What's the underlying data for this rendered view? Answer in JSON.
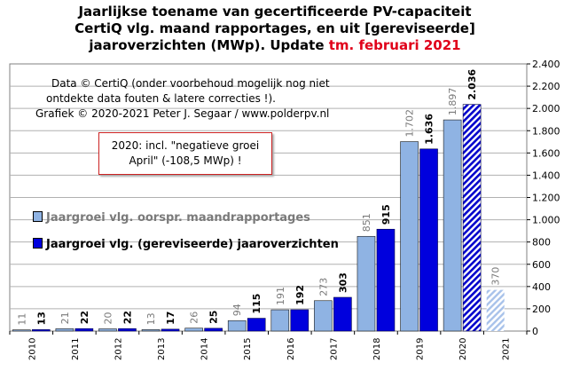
{
  "title": {
    "line1": "Jaarlijkse toename van gecertificeerde PV-capaciteit",
    "line2": "CertiQ vlg. maand rapportages, en uit [gereviseerde]",
    "line3_main": "jaaroverzichten (MWp). Update ",
    "line3_red": "tm. februari 2021"
  },
  "credit": {
    "line1": "Data © CertiQ (onder voorbehoud mogelijk nog niet",
    "line2": "ontdekte data fouten & latere correcties !).",
    "line3": "Grafiek © 2020-2021 Peter J. Segaar / www.polderpv.nl"
  },
  "note": {
    "line1": "2020: incl. \"negatieve groei",
    "line2": "April\" (-108,5 MWp) !"
  },
  "legend": {
    "series1": "Jaargroei vlg. oorspr. maandrapportages",
    "series2": "Jaargroei vlg. (gereviseerde) jaaroverzichten"
  },
  "colors": {
    "series1": "#8fb3e3",
    "series2": "#0000dd",
    "hatch_dark": "#0000cc",
    "hatch_light": "#a8c2ea",
    "plot_bg": "#ffffff",
    "grid": "#b0b0b0",
    "series1_label": "#7a7a7a"
  },
  "chart_data": {
    "type": "bar",
    "categories": [
      "2010",
      "2011",
      "2012",
      "2013",
      "2014",
      "2015",
      "2016",
      "2017",
      "2018",
      "2019",
      "2020",
      "2021"
    ],
    "series": [
      {
        "name": "Jaargroei vlg. oorspr. maandrapportages",
        "values": [
          11,
          21,
          20,
          13,
          26,
          94,
          191,
          273,
          851,
          1702,
          1897,
          370
        ],
        "labels": [
          "11",
          "21",
          "20",
          "13",
          "26",
          "94",
          "191",
          "273",
          "851",
          "1.702",
          "1.897",
          "370"
        ],
        "hatched": [
          false,
          false,
          false,
          false,
          false,
          false,
          false,
          false,
          false,
          false,
          false,
          true
        ]
      },
      {
        "name": "Jaargroei vlg. (gereviseerde) jaaroverzichten",
        "values": [
          13,
          22,
          22,
          17,
          25,
          115,
          192,
          303,
          915,
          1636,
          2036,
          null
        ],
        "labels": [
          "13",
          "22",
          "22",
          "17",
          "25",
          "115",
          "192",
          "303",
          "915",
          "1.636",
          "2.036",
          ""
        ],
        "hatched": [
          false,
          false,
          false,
          false,
          false,
          false,
          false,
          false,
          false,
          false,
          true,
          false
        ]
      }
    ],
    "ylim": [
      0,
      2400
    ],
    "yticks": [
      0,
      200,
      400,
      600,
      800,
      1000,
      1200,
      1400,
      1600,
      1800,
      2000,
      2200,
      2400
    ],
    "ytick_labels": [
      "0",
      "200",
      "400",
      "600",
      "800",
      "1.000",
      "1.200",
      "1.400",
      "1.600",
      "1.800",
      "2.000",
      "2.200",
      "2.400"
    ],
    "y_axis_side": "right",
    "grid": true,
    "legend_placement": "left-middle"
  }
}
